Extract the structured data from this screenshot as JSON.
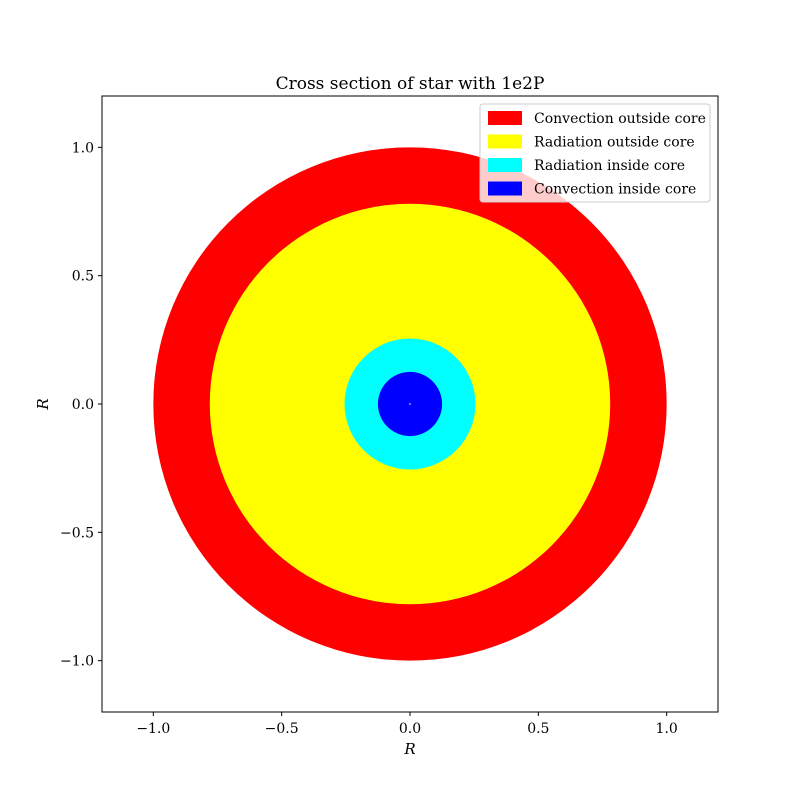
{
  "chart_data": {
    "type": "cross-section",
    "title": "Cross section of star with 1e2P",
    "xlabel": "R",
    "ylabel": "R",
    "xlim": [
      -1.2,
      1.2
    ],
    "ylim": [
      -1.2,
      1.2
    ],
    "xticks": [
      -1.0,
      -0.5,
      0.0,
      0.5,
      1.0
    ],
    "xtick_labels": [
      "−1.0",
      "−0.5",
      "0.0",
      "0.5",
      "1.0"
    ],
    "yticks": [
      -1.0,
      -0.5,
      0.0,
      0.5,
      1.0
    ],
    "ytick_labels": [
      "−1.0",
      "−0.5",
      "0.0",
      "0.5",
      "1.0"
    ],
    "grid": false,
    "legend_position": "top-right",
    "regions": [
      {
        "label": "Convection outside core",
        "color": "#ff0000",
        "outer_radius": 1.0
      },
      {
        "label": "Radiation outside core",
        "color": "#ffff00",
        "outer_radius": 0.78
      },
      {
        "label": "Radiation inside core",
        "color": "#00ffff",
        "outer_radius": 0.255
      },
      {
        "label": "Convection inside core",
        "color": "#0000ff",
        "outer_radius": 0.125
      }
    ],
    "center_mark_radius": 0.003
  }
}
